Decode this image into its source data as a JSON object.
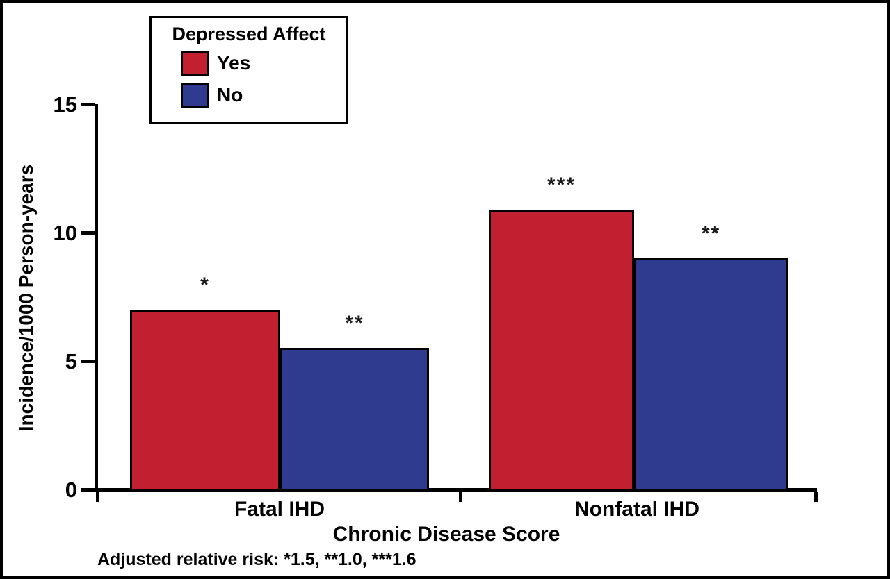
{
  "chart_data": {
    "type": "bar",
    "title": "",
    "legend_title": "Depressed Affect",
    "legend_position": "top-left",
    "categories": [
      "Fatal IHD",
      "Nonfatal IHD"
    ],
    "series": [
      {
        "name": "Yes",
        "color": "#C22030",
        "values": [
          7.0,
          10.9
        ]
      },
      {
        "name": "No",
        "color": "#2E3B8F",
        "values": [
          5.5,
          9.0
        ]
      }
    ],
    "annotations": [
      [
        "*",
        "***"
      ],
      [
        "**",
        "**"
      ]
    ],
    "xlabel": "Chronic Disease Score",
    "ylabel": "Incidence/1000 Person-years",
    "yticks": [
      0,
      5,
      10,
      15
    ],
    "ylim": [
      0,
      15
    ],
    "grid": false,
    "footnote": "Adjusted relative risk: *1.5, **1.0, ***1.6"
  }
}
